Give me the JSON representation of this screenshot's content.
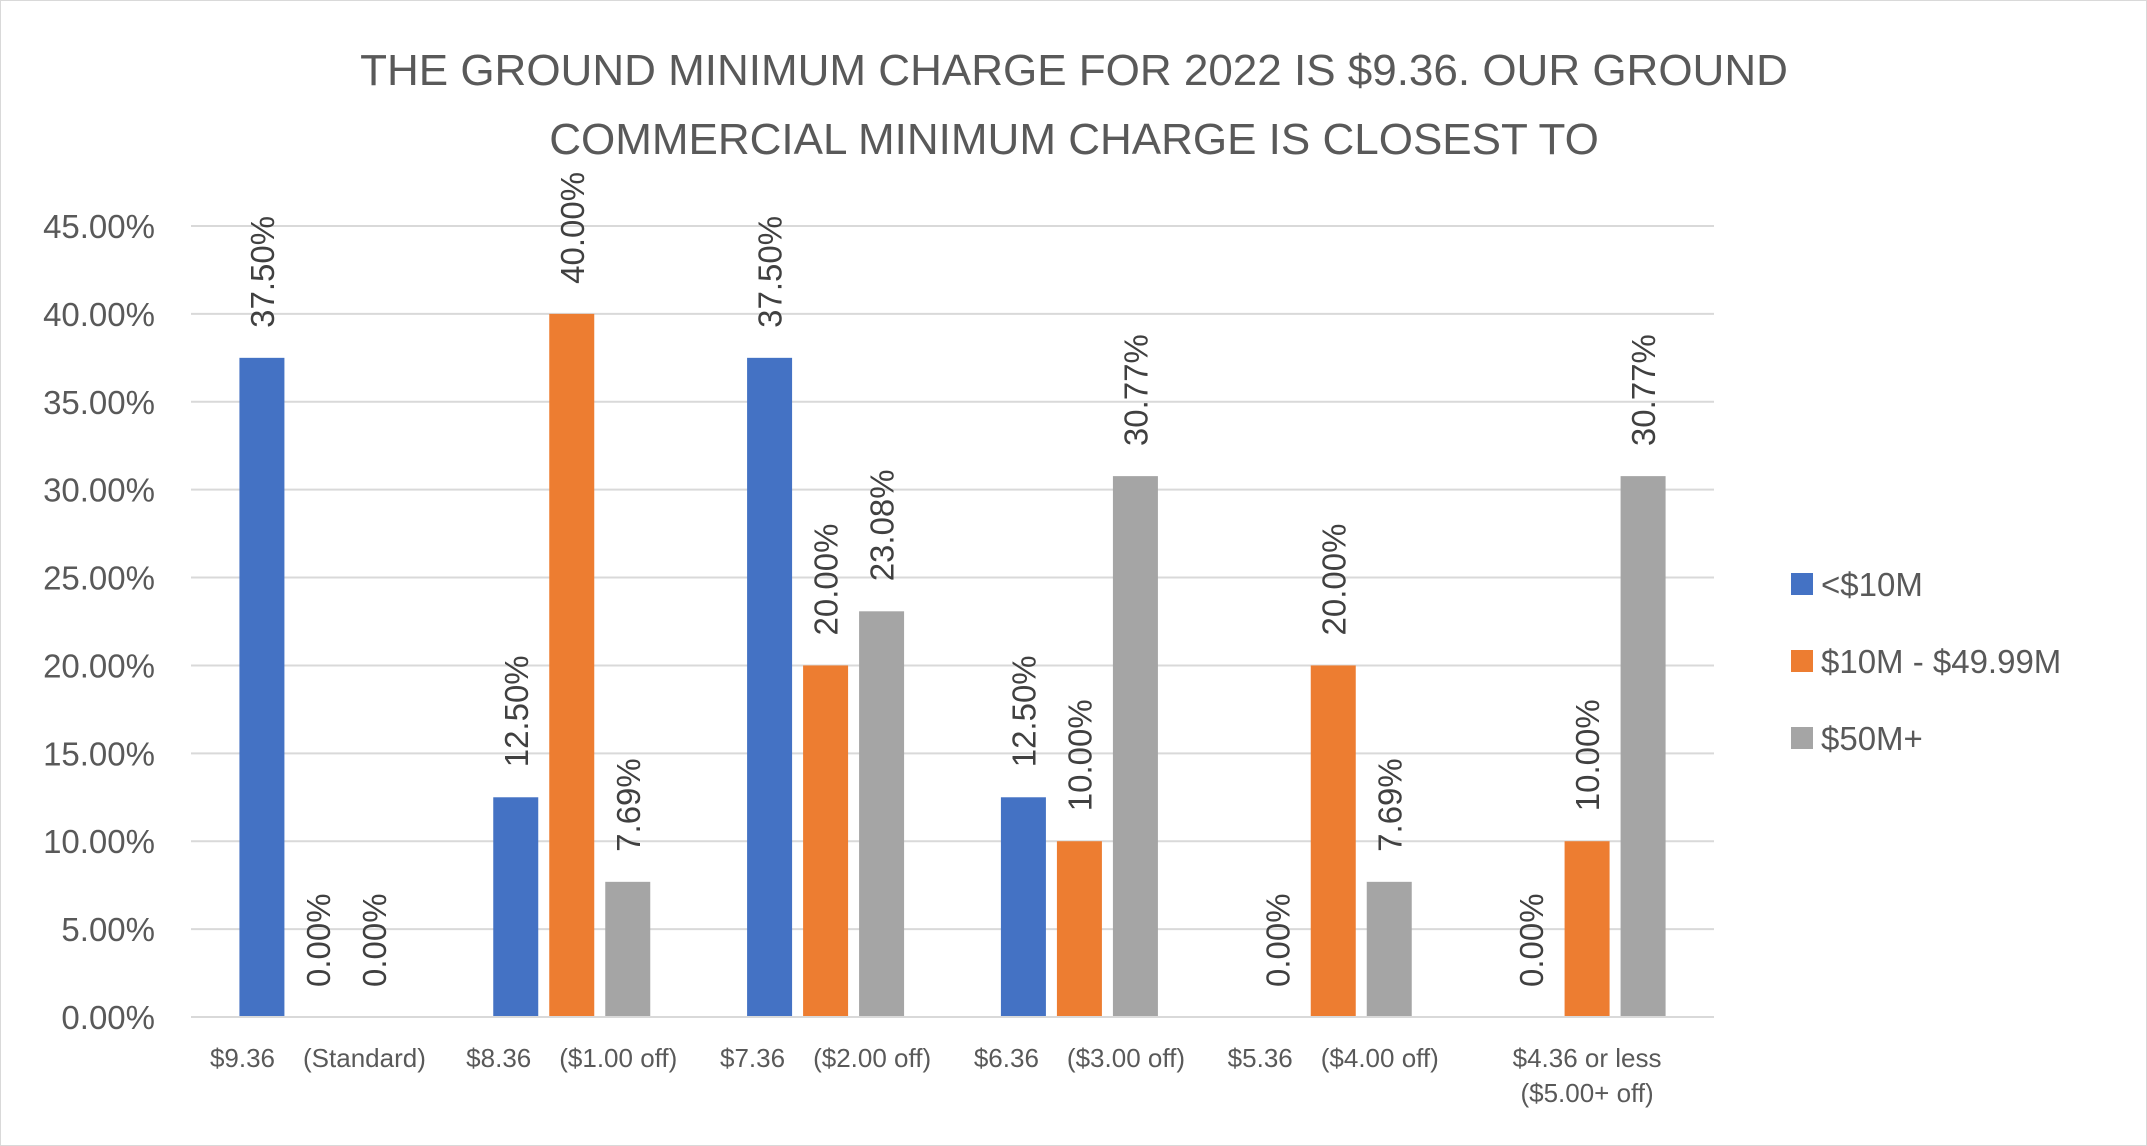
{
  "chart_data": {
    "type": "bar",
    "title_lines": [
      "THE GROUND MINIMUM CHARGE FOR 2022 IS $9.36. OUR GROUND",
      "COMMERCIAL MINIMUM CHARGE IS CLOSEST TO"
    ],
    "categories": [
      [
        "$9.36 (Standard)"
      ],
      [
        "$8.36 ($1.00 off)"
      ],
      [
        "$7.36 ($2.00 off)"
      ],
      [
        "$6.36 ($3.00 off)"
      ],
      [
        "$5.36 ($4.00 off)"
      ],
      [
        "$4.36 or less",
        "($5.00+ off)"
      ]
    ],
    "series": [
      {
        "name": "<$10M",
        "color": "#4472c4",
        "values": [
          37.5,
          12.5,
          37.5,
          12.5,
          0,
          0
        ],
        "labels": [
          "37.50%",
          "12.50%",
          "37.50%",
          "12.50%",
          "0.00%",
          "0.00%"
        ]
      },
      {
        "name": "$10M - $49.99M",
        "color": "#ed7d31",
        "values": [
          0,
          40,
          20,
          10,
          20,
          10
        ],
        "labels": [
          "0.00%",
          "40.00%",
          "20.00%",
          "10.00%",
          "20.00%",
          "10.00%"
        ]
      },
      {
        "name": "$50M+",
        "color": "#a5a5a5",
        "values": [
          0,
          7.69,
          23.08,
          30.77,
          7.69,
          30.77
        ],
        "labels": [
          "0.00%",
          "7.69%",
          "23.08%",
          "30.77%",
          "7.69%",
          "30.77%"
        ]
      }
    ],
    "ylim": [
      0,
      45
    ],
    "y_ticks": [
      "0.00%",
      "5.00%",
      "10.00%",
      "15.00%",
      "20.00%",
      "25.00%",
      "30.00%",
      "35.00%",
      "40.00%",
      "45.00%"
    ],
    "y_tick_values": [
      0,
      5,
      10,
      15,
      20,
      25,
      30,
      35,
      40,
      45
    ],
    "grid": true,
    "legend_position": "right",
    "colors": {
      "gridline": "#d9d9d9",
      "axis": "#d9d9d9",
      "border": "#d9d9d9"
    }
  }
}
